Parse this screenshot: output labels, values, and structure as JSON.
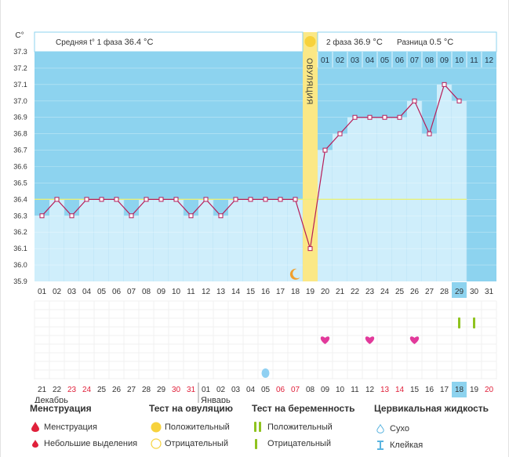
{
  "chart_data": {
    "type": "line",
    "unit_label": "C°",
    "ylim": [
      35.9,
      37.3
    ],
    "y_ticks": [
      "37.3",
      "37.2",
      "37.1",
      "37.0",
      "36.9",
      "36.8",
      "36.7",
      "36.6",
      "36.5",
      "36.4",
      "36.3",
      "36.2",
      "36.1",
      "36.0",
      "35.9"
    ],
    "days": [
      "01",
      "02",
      "03",
      "04",
      "05",
      "06",
      "07",
      "08",
      "09",
      "10",
      "11",
      "12",
      "13",
      "14",
      "15",
      "16",
      "17",
      "18",
      "19",
      "20",
      "21",
      "22",
      "23",
      "24",
      "25",
      "26",
      "27",
      "28",
      "29",
      "30",
      "31"
    ],
    "temperatures": [
      36.3,
      36.4,
      36.3,
      36.4,
      36.4,
      36.4,
      36.3,
      36.4,
      36.4,
      36.4,
      36.3,
      36.4,
      36.3,
      36.4,
      36.4,
      36.4,
      36.4,
      36.4,
      36.1,
      36.7,
      36.8,
      36.9,
      36.9,
      36.9,
      36.9,
      37.0,
      36.8,
      37.1,
      37.0,
      null,
      null
    ],
    "coverline": 36.4,
    "ovulation_day_index": 18,
    "current_day_index": 28,
    "phase1_label": "Средняя t° 1 фаза",
    "phase1_value": "36.4 °C",
    "phase2_label": "2 фаза",
    "phase2_value": "36.9 °C",
    "diff_label": "Разница",
    "diff_value": "0.5 °C",
    "ovulation_label": "ОВУЛЯЦИЯ",
    "phase2_days": [
      "01",
      "02",
      "03",
      "04",
      "05",
      "06",
      "07",
      "08",
      "09",
      "10",
      "11",
      "12"
    ],
    "moon_day_index": 17,
    "heart_days": [
      19,
      22,
      25
    ],
    "preg_test_days": [
      28,
      29
    ],
    "drop_day_index": 15,
    "calendar_days": [
      "21",
      "22",
      "23",
      "24",
      "25",
      "26",
      "27",
      "28",
      "29",
      "30",
      "31",
      "01",
      "02",
      "03",
      "04",
      "05",
      "06",
      "07",
      "08",
      "09",
      "10",
      "11",
      "12",
      "13",
      "14",
      "15",
      "16",
      "17",
      "18",
      "19",
      "20"
    ],
    "calendar_red": [
      2,
      3,
      9,
      10,
      16,
      17,
      23,
      24,
      30
    ],
    "calendar_current_index": 28,
    "month_dec": "Декабрь",
    "month_jan": "Январь"
  },
  "legend": {
    "menstruation": {
      "title": "Менструация",
      "item1": "Менструация",
      "item2": "Небольшие выделения"
    },
    "ovulation_test": {
      "title": "Тест на овуляцию",
      "item1": "Положительный",
      "item2": "Отрицательный"
    },
    "pregnancy_test": {
      "title": "Тест на беременность",
      "item1": "Положительный",
      "item2": "Отрицательный"
    },
    "cervical": {
      "title": "Цервикальная жидкость",
      "item1": "Сухо",
      "item2": "Клейкая"
    }
  },
  "colors": {
    "blue": "#8dd3ef",
    "bar": "#cfeefb",
    "ovulation": "#fbe886",
    "line": "#b71c58",
    "heart": "#e23a9b",
    "green": "#8fc31f",
    "red": "#e0203a"
  }
}
